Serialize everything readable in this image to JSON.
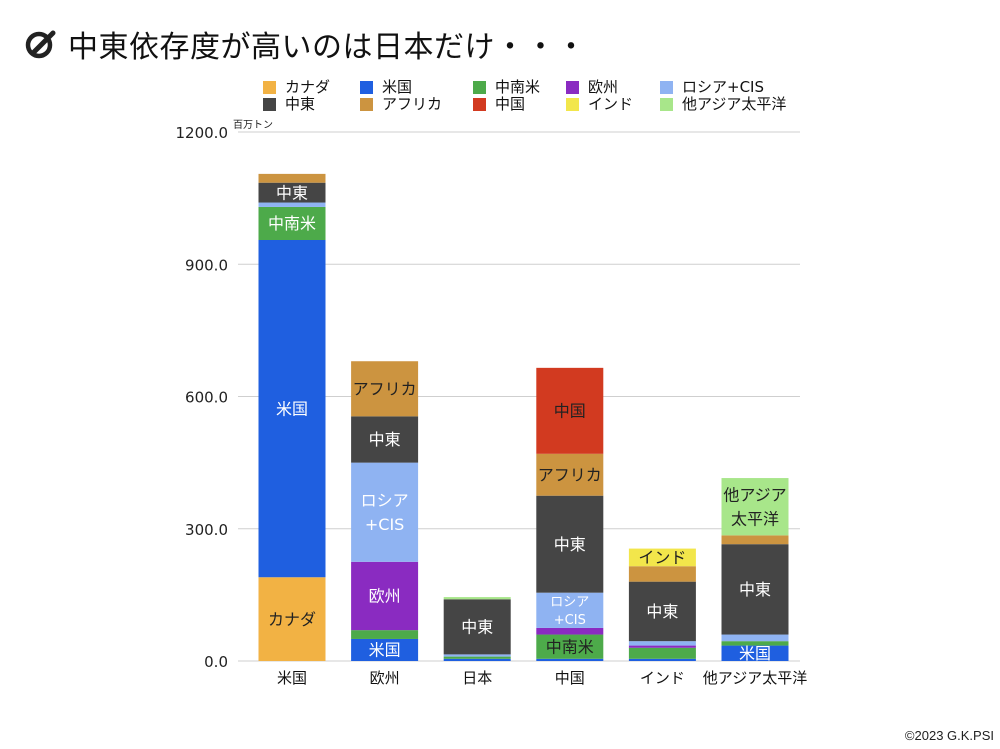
{
  "title": "中東依存度が高いのは日本だけ・・・",
  "copyright": "©2023 G.K.PSI",
  "chart_data": {
    "type": "bar",
    "stacked": true,
    "unit": "百万トン",
    "ylim": [
      0,
      1200
    ],
    "yticks": [
      "0.0",
      "300.0",
      "600.0",
      "900.0",
      "1200.0"
    ],
    "grid": true,
    "legend_position": "top",
    "categories": [
      "米国",
      "欧州",
      "日本",
      "中国",
      "インド",
      "他アジア太平洋"
    ],
    "series": [
      {
        "name": "カナダ",
        "color": "#F2B244",
        "values": [
          190,
          0,
          0,
          0,
          0,
          0
        ]
      },
      {
        "name": "米国",
        "color": "#1F5FE0",
        "values": [
          765,
          50,
          5,
          5,
          5,
          35
        ]
      },
      {
        "name": "中南米",
        "color": "#4DAA4A",
        "values": [
          75,
          20,
          5,
          55,
          25,
          10
        ]
      },
      {
        "name": "欧州",
        "color": "#8A2BC1",
        "values": [
          0,
          155,
          0,
          15,
          5,
          0
        ]
      },
      {
        "name": "ロシア+CIS",
        "color": "#8FB3F2",
        "values": [
          10,
          225,
          5,
          80,
          10,
          15
        ]
      },
      {
        "name": "中東",
        "color": "#454545",
        "values": [
          45,
          105,
          125,
          220,
          135,
          205
        ]
      },
      {
        "name": "アフリカ",
        "color": "#CC9440",
        "values": [
          20,
          125,
          0,
          95,
          35,
          20
        ]
      },
      {
        "name": "中国",
        "color": "#D23A20",
        "values": [
          0,
          0,
          0,
          195,
          0,
          0
        ]
      },
      {
        "name": "インド",
        "color": "#F2E64B",
        "values": [
          0,
          0,
          0,
          0,
          40,
          0
        ]
      },
      {
        "name": "他アジア太平洋",
        "color": "#A8E68A",
        "values": [
          0,
          0,
          5,
          0,
          0,
          130
        ]
      }
    ],
    "segment_labels": [
      {
        "cat": 0,
        "series": 0,
        "lines": [
          "カナダ"
        ],
        "color": "#222222"
      },
      {
        "cat": 0,
        "series": 1,
        "lines": [
          "米国"
        ],
        "color": "#ffffff"
      },
      {
        "cat": 0,
        "series": 2,
        "lines": [
          "中南米"
        ],
        "color": "#ffffff"
      },
      {
        "cat": 0,
        "series": 5,
        "lines": [
          "中東"
        ],
        "color": "#ffffff"
      },
      {
        "cat": 1,
        "series": 1,
        "lines": [
          "米国"
        ],
        "color": "#ffffff"
      },
      {
        "cat": 1,
        "series": 3,
        "lines": [
          "欧州"
        ],
        "color": "#ffffff"
      },
      {
        "cat": 1,
        "series": 4,
        "lines": [
          "ロシア",
          "+CIS"
        ],
        "color": "#ffffff"
      },
      {
        "cat": 1,
        "series": 5,
        "lines": [
          "中東"
        ],
        "color": "#ffffff"
      },
      {
        "cat": 1,
        "series": 6,
        "lines": [
          "アフリカ"
        ],
        "color": "#222222"
      },
      {
        "cat": 2,
        "series": 5,
        "lines": [
          "中東"
        ],
        "color": "#ffffff"
      },
      {
        "cat": 3,
        "series": 2,
        "lines": [
          "中南米"
        ],
        "color": "#222222"
      },
      {
        "cat": 3,
        "series": 4,
        "lines": [
          "ロシア",
          "+CIS"
        ],
        "color": "#ffffff"
      },
      {
        "cat": 3,
        "series": 5,
        "lines": [
          "中東"
        ],
        "color": "#ffffff"
      },
      {
        "cat": 3,
        "series": 6,
        "lines": [
          "アフリカ"
        ],
        "color": "#222222"
      },
      {
        "cat": 3,
        "series": 7,
        "lines": [
          "中国"
        ],
        "color": "#222222"
      },
      {
        "cat": 4,
        "series": 5,
        "lines": [
          "中東"
        ],
        "color": "#ffffff"
      },
      {
        "cat": 4,
        "series": 8,
        "lines": [
          "インド"
        ],
        "color": "#222222"
      },
      {
        "cat": 5,
        "series": 1,
        "lines": [
          "米国"
        ],
        "color": "#ffffff"
      },
      {
        "cat": 5,
        "series": 5,
        "lines": [
          "中東"
        ],
        "color": "#ffffff"
      },
      {
        "cat": 5,
        "series": 9,
        "lines": [
          "他アジア",
          "太平洋"
        ],
        "color": "#222222"
      }
    ]
  }
}
